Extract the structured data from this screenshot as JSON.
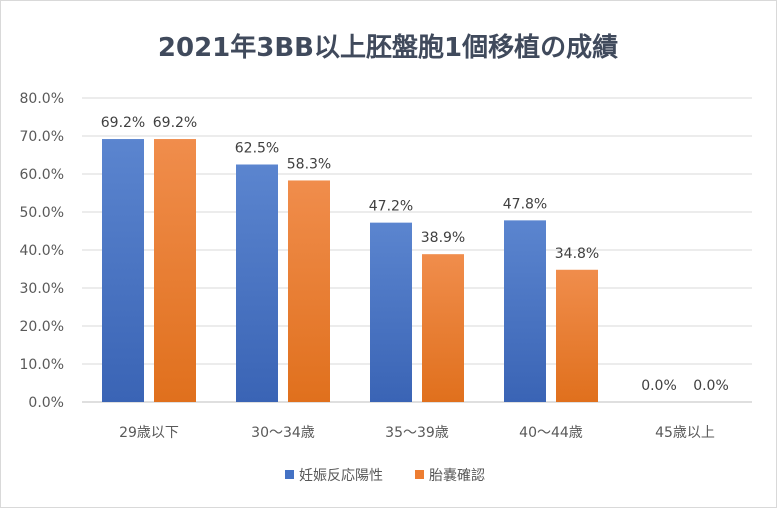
{
  "chart_data": {
    "type": "bar",
    "title": "2021年3BB以上胚盤胞1個移植の成績",
    "categories": [
      "29歳以下",
      "30～34歳",
      "35～39歳",
      "40～44歳",
      "45歳以上"
    ],
    "series": [
      {
        "name": "妊娠反応陽性",
        "values": [
          69.2,
          62.5,
          47.2,
          47.8,
          0.0
        ],
        "color": "#4472c4",
        "labels": [
          "69.2%",
          "62.5%",
          "47.2%",
          "47.8%",
          "0.0%"
        ]
      },
      {
        "name": "胎嚢確認",
        "values": [
          69.2,
          58.3,
          38.9,
          34.8,
          0.0
        ],
        "color": "#ed7d31",
        "labels": [
          "69.2%",
          "58.3%",
          "38.9%",
          "34.8%",
          "0.0%"
        ]
      }
    ],
    "ylim": [
      0,
      80
    ],
    "yticks": [
      0,
      10,
      20,
      30,
      40,
      50,
      60,
      70,
      80
    ],
    "ytick_labels": [
      "0.0%",
      "10.0%",
      "20.0%",
      "30.0%",
      "40.0%",
      "50.0%",
      "60.0%",
      "70.0%",
      "80.0%"
    ],
    "grid": true,
    "legend": "bottom"
  }
}
